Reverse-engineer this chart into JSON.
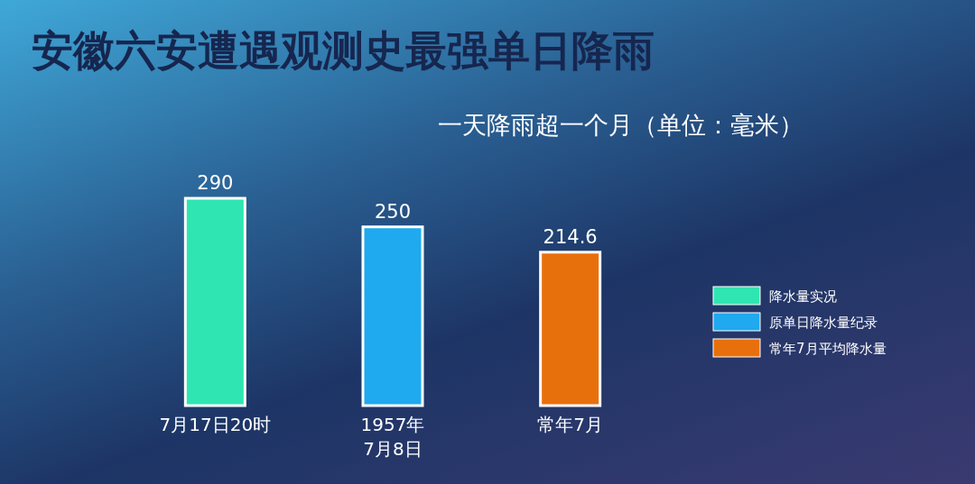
{
  "chart_data": {
    "type": "bar",
    "title": "安徽六安遭遇观测史最强单日降雨",
    "subtitle": "一天降雨超一个月（单位：毫米）",
    "categories": [
      "7月17日20时",
      "1957年\n7月8日",
      "常年7月"
    ],
    "series": [
      {
        "name": "降水量实况",
        "color": "#2fe6b2",
        "values": [
          290,
          null,
          null
        ]
      },
      {
        "name": "原单日降水量纪录",
        "color": "#1fa9ef",
        "values": [
          null,
          250,
          null
        ]
      },
      {
        "name": "常年7月平均降水量",
        "color": "#e8700c",
        "values": [
          null,
          null,
          214.6
        ]
      }
    ],
    "data_labels": true,
    "legend": "right"
  }
}
